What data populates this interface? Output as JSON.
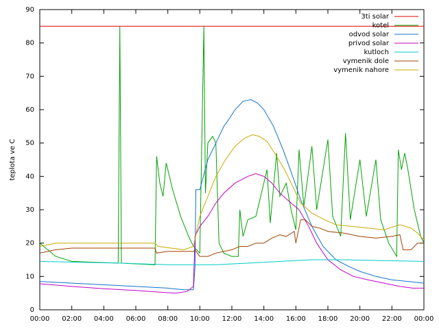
{
  "chart_data": {
    "type": "line",
    "ylabel": "teplota ve C",
    "xlim": [
      0,
      24
    ],
    "xticks": [
      {
        "value": 0,
        "label": "00:00"
      },
      {
        "value": 2,
        "label": "02:00"
      },
      {
        "value": 4,
        "label": "04:00"
      },
      {
        "value": 6,
        "label": "06:00"
      },
      {
        "value": 8,
        "label": "08:00"
      },
      {
        "value": 10,
        "label": "10:00"
      },
      {
        "value": 12,
        "label": "12:00"
      },
      {
        "value": 14,
        "label": "14:00"
      },
      {
        "value": 16,
        "label": "16:00"
      },
      {
        "value": 18,
        "label": "18:00"
      },
      {
        "value": 20,
        "label": "20:00"
      },
      {
        "value": 22,
        "label": "22:00"
      },
      {
        "value": 24,
        "label": "00:00"
      }
    ],
    "ylim": [
      0,
      90
    ],
    "yticks": [
      0,
      10,
      20,
      30,
      40,
      50,
      60,
      70,
      80,
      90
    ],
    "legend": "top-right",
    "series": [
      {
        "name": "3ti solar",
        "color": "#e00000",
        "x": [
          0,
          24
        ],
        "values": [
          85,
          85
        ]
      },
      {
        "name": "kotel",
        "color": "#00a000",
        "x": [
          0,
          1,
          2,
          4.9,
          5.0,
          5.1,
          7.2,
          7.3,
          7.5,
          7.7,
          7.9,
          8.3,
          8.8,
          9.3,
          9.6,
          10.0,
          10.25,
          10.35,
          10.5,
          10.8,
          11.0,
          11.2,
          11.5,
          12.0,
          12.4,
          12.5,
          12.7,
          13.0,
          13.5,
          14.2,
          14.4,
          14.8,
          15.0,
          15.4,
          15.7,
          16.0,
          16.2,
          16.5,
          17.0,
          17.3,
          18.0,
          18.3,
          18.8,
          19.1,
          19.4,
          20.0,
          20.4,
          21.0,
          21.3,
          21.8,
          22.3,
          22.4,
          22.6,
          22.8,
          23.0,
          23.4,
          23.8,
          24
        ],
        "values": [
          20,
          16,
          14.5,
          14,
          85,
          14,
          13.5,
          46,
          38,
          34,
          44,
          36,
          28,
          22,
          19,
          17,
          85,
          35,
          50,
          52,
          50,
          20,
          17,
          16,
          16,
          30,
          22,
          27,
          28,
          42,
          26,
          47,
          34,
          38,
          30,
          24,
          48,
          31,
          49,
          30,
          51,
          28,
          22,
          53,
          27,
          45,
          28,
          45,
          27,
          20,
          16,
          48,
          42,
          47,
          42,
          30,
          22,
          20
        ]
      },
      {
        "name": "odvod solar",
        "color": "#1070d0",
        "x": [
          0,
          2,
          4,
          6,
          8,
          9,
          9.6,
          9.7,
          9.75,
          10,
          10.5,
          11,
          11.5,
          11.8,
          12.2,
          12.7,
          13.2,
          13.6,
          14,
          14.6,
          15.2,
          15.8,
          16.3,
          17,
          17.7,
          18.5,
          19.3,
          20,
          21,
          22,
          23,
          24
        ],
        "values": [
          8.5,
          8,
          7.5,
          7,
          6.5,
          6,
          6,
          13,
          36,
          36,
          45,
          50,
          55,
          57,
          60,
          62.5,
          63,
          62,
          60,
          55,
          48,
          40,
          33,
          25,
          19,
          15,
          13,
          11.5,
          10,
          9,
          8.5,
          8
        ]
      },
      {
        "name": "privod solar",
        "color": "#c000c0",
        "x": [
          0,
          2,
          4,
          6,
          7.5,
          8.5,
          9.2,
          9.6,
          9.7,
          10,
          10.5,
          11,
          11.5,
          12.2,
          13,
          13.5,
          14,
          14.5,
          15,
          15.7,
          16.2,
          16.8,
          17.3,
          18,
          18.8,
          19.6,
          20.5,
          21.5,
          22.5,
          23.3,
          24
        ],
        "values": [
          7.8,
          7,
          6.3,
          5.8,
          5.3,
          5,
          5.5,
          7,
          22,
          25,
          28,
          32,
          35,
          38,
          40,
          40.8,
          40,
          38,
          35,
          32,
          30,
          25,
          20,
          15,
          12,
          10,
          9,
          8,
          7,
          6.5,
          6.5
        ]
      },
      {
        "name": "kutloch",
        "color": "#00c8c8",
        "x": [
          0,
          5,
          8,
          11,
          13,
          15,
          17,
          19,
          21,
          24
        ],
        "values": [
          14.5,
          14,
          13.5,
          13.5,
          14,
          14.5,
          15,
          15,
          14.8,
          14.5
        ]
      },
      {
        "name": "vymenik dole",
        "color": "#a04000",
        "x": [
          0,
          1,
          2,
          7.2,
          7.3,
          8,
          9.6,
          9.7,
          10,
          10.5,
          11,
          12,
          12.5,
          13,
          13.5,
          14,
          14.5,
          15,
          15.4,
          15.9,
          16,
          16.3,
          16.6,
          17,
          17.5,
          18,
          19,
          20,
          21,
          22,
          22.5,
          22.7,
          23.2,
          23.6,
          24
        ],
        "values": [
          17,
          18,
          18.5,
          18.5,
          17,
          17.5,
          17.5,
          18,
          16,
          16,
          17,
          18,
          19,
          19,
          20,
          20,
          21.5,
          22.5,
          22,
          23.5,
          20,
          27,
          27,
          25,
          24.5,
          23.5,
          23,
          22,
          21.5,
          22,
          22.5,
          18,
          18,
          20,
          20
        ]
      },
      {
        "name": "vymenik nahore",
        "color": "#c8a800",
        "x": [
          0,
          1,
          7.2,
          7.4,
          9,
          9.6,
          10,
          10.5,
          11,
          11.6,
          12.2,
          12.8,
          13.3,
          13.7,
          14.2,
          14.8,
          15.3,
          15.8,
          16.3,
          17,
          17.8,
          18.5,
          19.5,
          20.5,
          21.5,
          22.5,
          23.2,
          23.6,
          24
        ],
        "values": [
          19,
          20,
          20,
          19,
          18,
          19,
          28,
          34,
          40,
          45,
          49,
          51.5,
          52.5,
          52,
          50.5,
          46,
          42,
          37,
          32,
          29,
          27,
          25.5,
          25,
          24.5,
          24,
          25.5,
          24.5,
          23,
          21
        ]
      }
    ]
  }
}
